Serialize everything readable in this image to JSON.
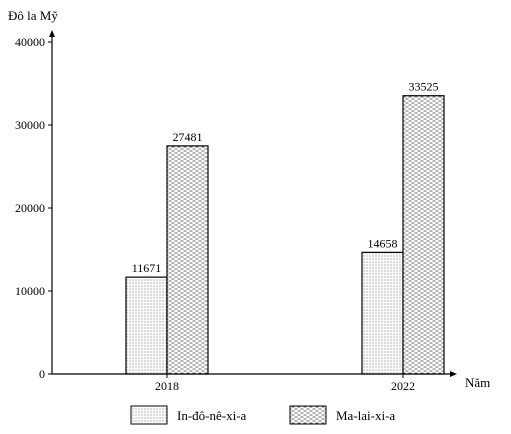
{
  "chart_data": {
    "type": "bar",
    "ylabel": "Đô la Mỹ",
    "xlabel": "Năm",
    "categories": [
      "2018",
      "2022"
    ],
    "series": [
      {
        "name": "In-đô-nê-xi-a",
        "values": [
          11671,
          14658
        ],
        "pattern": "dots"
      },
      {
        "name": "Ma-lai-xi-a",
        "values": [
          27481,
          33525
        ],
        "pattern": "dashes"
      }
    ],
    "ylim": [
      0,
      40000
    ],
    "yticks": [
      0,
      10000,
      20000,
      30000,
      40000
    ],
    "grid": false,
    "legend_position": "bottom"
  }
}
